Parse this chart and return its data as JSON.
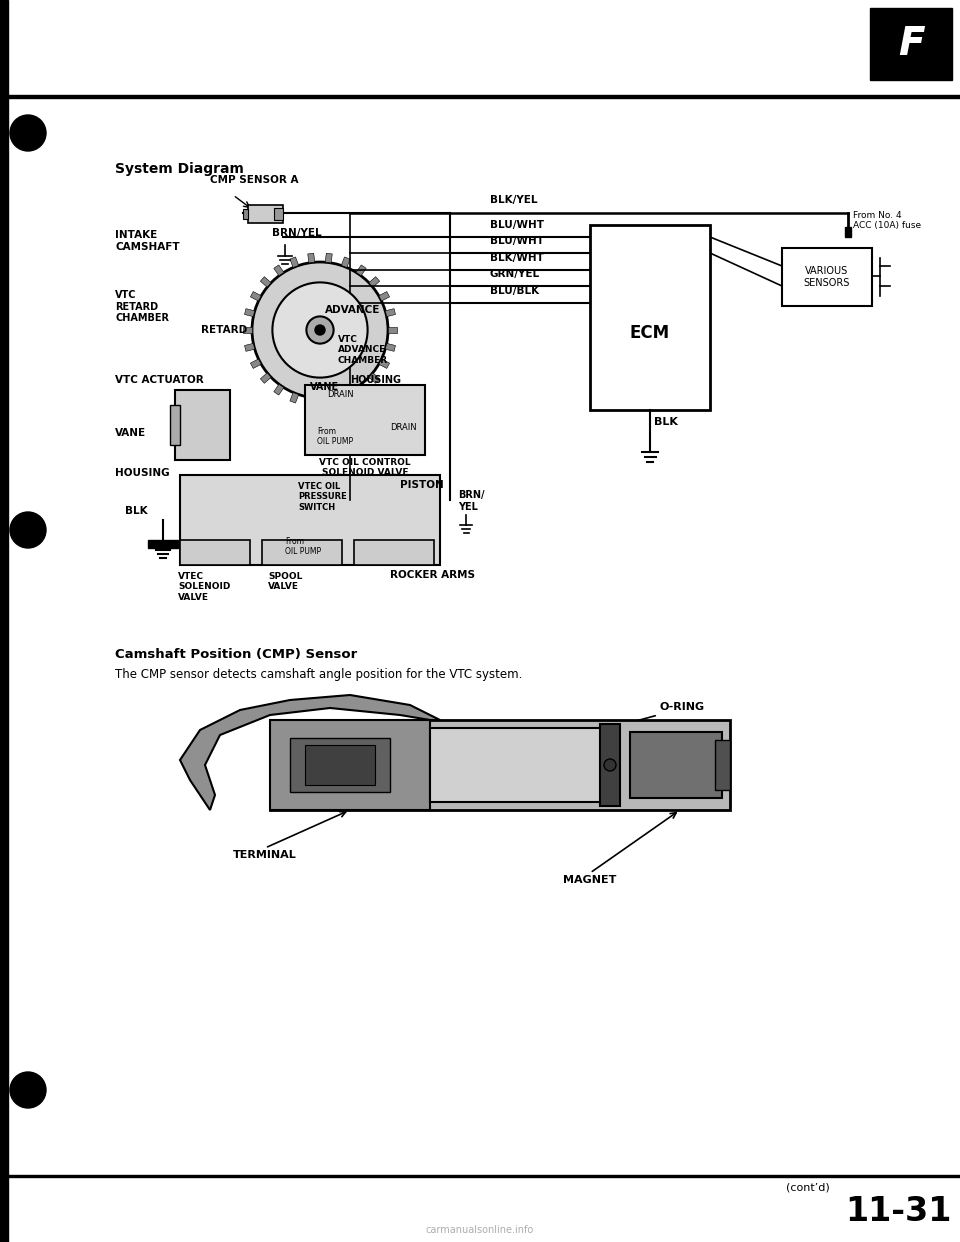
{
  "title": "System Diagram",
  "bg_color": "#ffffff",
  "page_number": "11-31",
  "cont_d": "(cont’d)",
  "watermark": "carmanualsonline.info",
  "section_header_bold": "Camshaft Position (CMP) Sensor",
  "section_text": "The CMP sensor detects camshaft angle position for the VTC system.",
  "wire_labels": [
    "BLK/YEL",
    "BLU/WHT",
    "BLU/WHT",
    "BLK/WHT",
    "GRN/YEL",
    "BLU/BLK"
  ],
  "ecm_label": "ECM",
  "fuse_label": "From No. 4\nACC (10A) fuse",
  "various_sensors_label": "VARIOUS\nSENSORS",
  "blk_label": "BLK",
  "cmp_sensor_label": "CMP SENSOR A",
  "intake_camshaft_label": "INTAKE\nCAMSHAFT",
  "brn_yel_label": "BRN/YEL",
  "vtc_retard_label": "VTC\nRETARD\nCHAMBER",
  "retard_label": "RETARD",
  "advance_label": "ADVANCE",
  "vtc_advance_label": "VTC\nADVANCE\nCHAMBER",
  "housing_label": "HOUSING",
  "vane_label": "VANE",
  "vtc_actuator_label": "VTC ACTUATOR",
  "vane2_label": "VANE",
  "housing2_label": "HOUSING",
  "drain_label": "DRAIN",
  "from_oil_pump_label": "From\nOIL PUMP",
  "drain2_label": "DRAIN",
  "vtc_oil_control_label": "VTC OIL CONTROL\nSOLENOID VALVE",
  "blk2_label": "BLK",
  "vtec_oil_pressure_label": "VTEC OIL\nPRESSURE\nSWITCH",
  "piston_label": "PISTON",
  "brn_yel2_label": "BRN/\nYEL",
  "from_oil_pump2_label": "From\nOIL PUMP",
  "vtec_solenoid_label": "VTEC\nSOLENOID\nVALVE",
  "spool_valve_label": "SPOOL\nVALVE",
  "rocker_arms_label": "ROCKER ARMS",
  "terminal_label": "TERMINAL",
  "o_ring_label": "O-RING",
  "magnet_label": "MAGNET"
}
